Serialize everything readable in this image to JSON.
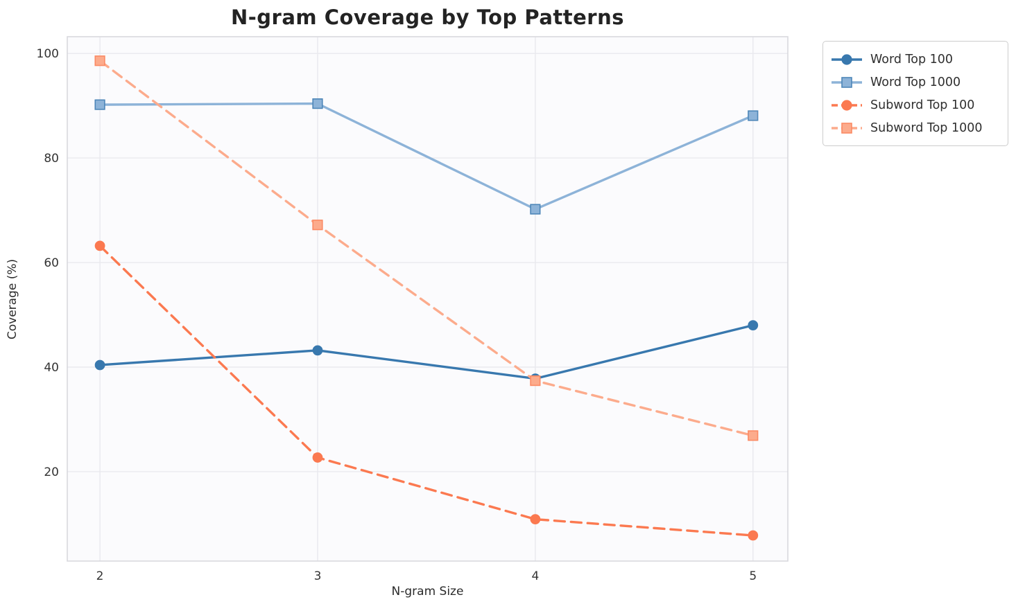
{
  "chart_data": {
    "type": "line",
    "title": "N-gram Coverage by Top Patterns",
    "xlabel": "N-gram Size",
    "ylabel": "Coverage (%)",
    "x": [
      2,
      3,
      4,
      5
    ],
    "x_ticks": [
      "2",
      "3",
      "4",
      "5"
    ],
    "y_ticks": [
      20,
      40,
      60,
      80,
      100
    ],
    "xlim": [
      1.85,
      5.16
    ],
    "ylim": [
      2.9,
      103.2
    ],
    "grid": true,
    "legend_position": "outside-upper-right",
    "series": [
      {
        "name": "Word Top 100",
        "values": [
          40.4,
          43.2,
          37.8,
          48.0
        ],
        "color": "#3878ae",
        "marker": "circle",
        "marker_edge": "#3878ae",
        "line_style": "solid"
      },
      {
        "name": "Word Top 1000",
        "values": [
          90.2,
          90.4,
          70.2,
          88.1
        ],
        "color": "#8db3d8",
        "marker": "square",
        "marker_edge": "#4d86b8",
        "line_style": "solid"
      },
      {
        "name": "Subword Top 100",
        "values": [
          63.2,
          22.7,
          10.9,
          7.8
        ],
        "color": "#fb7950",
        "marker": "circle",
        "marker_edge": "#fb7950",
        "line_style": "dashed"
      },
      {
        "name": "Subword Top 1000",
        "values": [
          98.6,
          67.2,
          37.4,
          26.9
        ],
        "color": "#fcab8c",
        "marker": "square",
        "marker_edge": "#fb8a64",
        "line_style": "dashed"
      }
    ],
    "style": {
      "plot_background": "#fbfbfd",
      "gridline_color": "#e9e9ee",
      "spine_color": "#d9d9de",
      "title_color": "#232323",
      "tick_color": "#333333"
    }
  }
}
